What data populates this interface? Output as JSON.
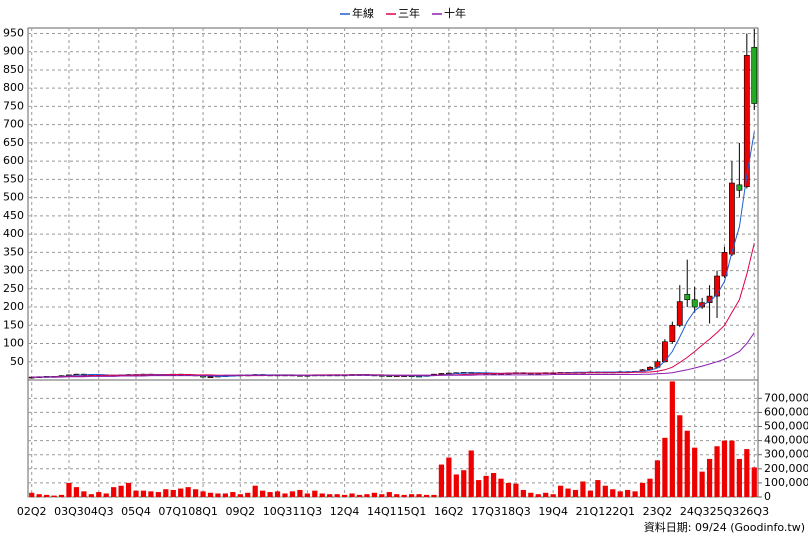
{
  "chart_data": {
    "type": "candlestick",
    "categories": [
      "02Q2",
      null,
      null,
      null,
      null,
      "03Q3",
      null,
      null,
      null,
      "04Q3",
      null,
      null,
      null,
      null,
      "05Q4",
      null,
      null,
      null,
      null,
      "07Q1",
      null,
      null,
      null,
      "08Q1",
      null,
      null,
      null,
      null,
      "09Q2",
      null,
      null,
      null,
      null,
      "10Q3",
      null,
      null,
      null,
      "11Q3",
      null,
      null,
      null,
      null,
      "12Q4",
      null,
      null,
      null,
      null,
      "14Q1",
      null,
      null,
      null,
      "15Q1",
      null,
      null,
      null,
      null,
      "16Q2",
      null,
      null,
      null,
      null,
      "17Q3",
      null,
      null,
      null,
      "18Q3",
      null,
      null,
      null,
      null,
      "19Q4",
      null,
      null,
      null,
      null,
      "21Q1",
      null,
      null,
      null,
      "22Q1",
      null,
      null,
      null,
      null,
      "23Q2",
      null,
      null,
      null,
      null,
      "24Q3",
      null,
      null,
      null,
      "25Q3",
      null,
      null,
      null,
      "26Q3"
    ],
    "open": [
      8,
      8,
      9,
      10,
      10,
      12,
      14,
      16,
      15,
      14,
      13,
      12,
      13,
      14,
      15,
      15,
      16,
      15,
      14,
      15,
      16,
      15,
      14,
      12,
      8,
      9,
      11,
      12,
      13,
      14,
      14,
      15,
      14,
      13,
      14,
      14,
      13,
      12,
      13,
      14,
      14,
      14,
      13,
      14,
      15,
      15,
      14,
      13,
      12,
      11,
      12,
      12,
      11,
      10,
      13,
      16,
      18,
      19,
      20,
      21,
      20,
      19,
      18,
      17,
      18,
      19,
      20,
      19,
      18,
      19,
      20,
      20,
      21,
      21,
      20,
      21,
      22,
      22,
      21,
      22,
      23,
      22,
      24,
      28,
      35,
      50,
      105,
      150,
      235,
      220,
      200,
      212,
      230,
      285,
      345,
      535,
      530,
      912
    ],
    "high": [
      9,
      10,
      11,
      11,
      13,
      15,
      17,
      17,
      16,
      15,
      14,
      14,
      15,
      16,
      16,
      17,
      17,
      16,
      16,
      17,
      17,
      16,
      15,
      13,
      10,
      12,
      13,
      14,
      15,
      15,
      16,
      16,
      15,
      15,
      15,
      15,
      14,
      14,
      15,
      15,
      15,
      15,
      15,
      16,
      16,
      16,
      15,
      14,
      13,
      13,
      13,
      13,
      12,
      14,
      17,
      19,
      20,
      21,
      22,
      22,
      21,
      20,
      19,
      19,
      20,
      21,
      21,
      20,
      20,
      21,
      21,
      22,
      22,
      22,
      22,
      23,
      23,
      23,
      23,
      24,
      24,
      25,
      30,
      38,
      55,
      112,
      160,
      260,
      330,
      255,
      225,
      260,
      300,
      365,
      600,
      650,
      950,
      962
    ],
    "low": [
      7,
      7,
      8,
      9,
      9,
      11,
      13,
      14,
      13,
      12,
      11,
      11,
      12,
      13,
      14,
      14,
      14,
      13,
      13,
      14,
      14,
      13,
      11,
      7,
      7,
      8,
      10,
      11,
      12,
      13,
      13,
      13,
      12,
      12,
      13,
      13,
      11,
      11,
      12,
      13,
      13,
      12,
      12,
      13,
      14,
      13,
      12,
      11,
      10,
      10,
      11,
      10,
      9,
      9,
      12,
      15,
      17,
      18,
      19,
      19,
      18,
      17,
      16,
      16,
      17,
      18,
      18,
      17,
      17,
      18,
      19,
      19,
      20,
      19,
      19,
      20,
      21,
      20,
      20,
      21,
      21,
      21,
      23,
      26,
      33,
      48,
      100,
      145,
      200,
      185,
      195,
      155,
      170,
      280,
      340,
      500,
      525,
      740
    ],
    "close": [
      8,
      9,
      10,
      10,
      12,
      14,
      16,
      15,
      14,
      13,
      12,
      13,
      14,
      15,
      15,
      16,
      15,
      14,
      15,
      16,
      15,
      14,
      12,
      8,
      9,
      11,
      12,
      13,
      14,
      14,
      15,
      14,
      13,
      14,
      14,
      13,
      12,
      13,
      14,
      14,
      14,
      13,
      14,
      15,
      15,
      14,
      13,
      12,
      11,
      12,
      12,
      11,
      10,
      13,
      16,
      18,
      19,
      20,
      21,
      20,
      19,
      18,
      17,
      18,
      19,
      20,
      19,
      18,
      19,
      20,
      20,
      21,
      21,
      20,
      21,
      22,
      22,
      21,
      22,
      23,
      22,
      24,
      28,
      35,
      50,
      105,
      150,
      215,
      220,
      200,
      212,
      230,
      285,
      350,
      540,
      520,
      890,
      758
    ],
    "up_color": "#ee0000",
    "down_color": "#22aa22",
    "series": [
      {
        "name": "年線",
        "color": "#1f5fd0",
        "values": [
          8,
          8,
          9,
          9,
          10,
          11,
          13,
          14,
          15,
          15,
          14,
          13,
          13,
          14,
          14,
          15,
          15,
          15,
          15,
          15,
          15,
          15,
          14,
          12,
          11,
          10,
          10,
          11,
          12,
          13,
          14,
          14,
          14,
          14,
          14,
          14,
          13,
          13,
          13,
          13,
          14,
          14,
          14,
          14,
          15,
          15,
          14,
          14,
          13,
          12,
          12,
          12,
          11,
          11,
          12,
          14,
          16,
          18,
          19,
          20,
          20,
          20,
          19,
          18,
          18,
          18,
          19,
          19,
          19,
          19,
          19,
          20,
          20,
          21,
          21,
          21,
          21,
          22,
          22,
          22,
          22,
          23,
          24,
          27,
          33,
          52,
          78,
          118,
          160,
          190,
          205,
          215,
          235,
          270,
          350,
          420,
          560,
          680
        ]
      },
      {
        "name": "三年",
        "color": "#e0004a",
        "values": [
          8,
          8,
          8,
          9,
          9,
          10,
          10,
          11,
          12,
          12,
          13,
          13,
          13,
          13,
          14,
          14,
          14,
          14,
          14,
          15,
          15,
          15,
          14,
          14,
          14,
          13,
          13,
          13,
          13,
          12,
          12,
          12,
          13,
          13,
          13,
          13,
          13,
          13,
          14,
          14,
          14,
          14,
          14,
          14,
          14,
          14,
          14,
          14,
          13,
          13,
          13,
          13,
          13,
          13,
          13,
          13,
          14,
          14,
          15,
          16,
          17,
          17,
          18,
          18,
          19,
          19,
          19,
          19,
          19,
          19,
          19,
          19,
          19,
          19,
          20,
          20,
          20,
          20,
          20,
          20,
          20,
          21,
          21,
          22,
          24,
          28,
          35,
          48,
          62,
          78,
          95,
          112,
          130,
          150,
          185,
          220,
          290,
          375
        ]
      },
      {
        "name": "十年",
        "color": "#8a1fb0",
        "values": [
          8,
          8,
          8,
          8,
          8,
          9,
          9,
          9,
          10,
          10,
          10,
          10,
          11,
          11,
          11,
          11,
          12,
          12,
          12,
          12,
          12,
          12,
          12,
          12,
          12,
          12,
          13,
          13,
          13,
          13,
          13,
          13,
          13,
          13,
          13,
          13,
          13,
          13,
          13,
          13,
          13,
          13,
          13,
          13,
          13,
          13,
          13,
          13,
          13,
          13,
          13,
          13,
          13,
          13,
          13,
          13,
          13,
          13,
          13,
          13,
          14,
          14,
          14,
          14,
          14,
          14,
          14,
          14,
          14,
          14,
          15,
          15,
          15,
          15,
          15,
          15,
          15,
          15,
          15,
          15,
          15,
          15,
          16,
          16,
          17,
          18,
          20,
          24,
          28,
          33,
          38,
          44,
          50,
          57,
          67,
          78,
          100,
          130
        ]
      }
    ],
    "volume": {
      "color": "#ee0000",
      "axis": "y2",
      "values": [
        30000,
        20000,
        15000,
        10000,
        15000,
        100000,
        70000,
        40000,
        20000,
        35000,
        25000,
        70000,
        80000,
        100000,
        45000,
        45000,
        40000,
        35000,
        55000,
        50000,
        60000,
        70000,
        55000,
        40000,
        30000,
        25000,
        25000,
        35000,
        20000,
        30000,
        80000,
        45000,
        35000,
        40000,
        25000,
        40000,
        50000,
        25000,
        45000,
        25000,
        20000,
        20000,
        15000,
        25000,
        15000,
        20000,
        30000,
        20000,
        35000,
        20000,
        15000,
        20000,
        20000,
        15000,
        15000,
        230000,
        280000,
        160000,
        190000,
        330000,
        120000,
        150000,
        170000,
        130000,
        100000,
        95000,
        50000,
        30000,
        20000,
        30000,
        20000,
        80000,
        60000,
        50000,
        110000,
        45000,
        120000,
        80000,
        55000,
        40000,
        50000,
        40000,
        100000,
        130000,
        260000,
        420000,
        820000,
        580000,
        470000,
        350000,
        180000,
        270000,
        360000,
        400000,
        400000,
        270000,
        340000,
        210000
      ]
    },
    "ylim": [
      0,
      965
    ],
    "yticks": [
      50,
      100,
      150,
      200,
      250,
      300,
      350,
      400,
      450,
      500,
      550,
      600,
      650,
      700,
      750,
      800,
      850,
      900,
      950
    ],
    "y2lim": [
      0,
      830000
    ],
    "y2ticks": [
      0,
      {
        "value": 100000,
        "label": "100,000"
      },
      {
        "value": 200000,
        "label": "200,000"
      },
      {
        "value": 300000,
        "label": "300,000"
      },
      {
        "value": 400000,
        "label": "400,000"
      },
      {
        "value": 500000,
        "label": "500,000"
      },
      {
        "value": 600000,
        "label": "600,000"
      },
      {
        "value": 700000,
        "label": "700,000"
      }
    ],
    "grid": true,
    "legend": "top",
    "note": "資料日期: 09/24 (Goodinfo.tw)"
  }
}
